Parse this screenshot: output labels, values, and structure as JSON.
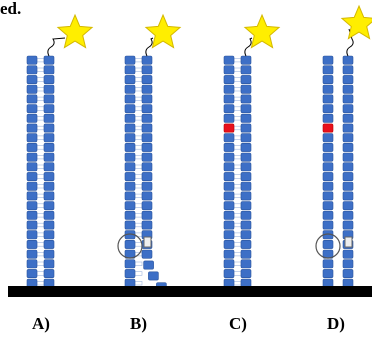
{
  "header": {
    "fragment": "ed."
  },
  "panels": [
    {
      "label": "A)"
    },
    {
      "label": "B)"
    },
    {
      "label": "C)"
    },
    {
      "label": "D)"
    }
  ]
}
